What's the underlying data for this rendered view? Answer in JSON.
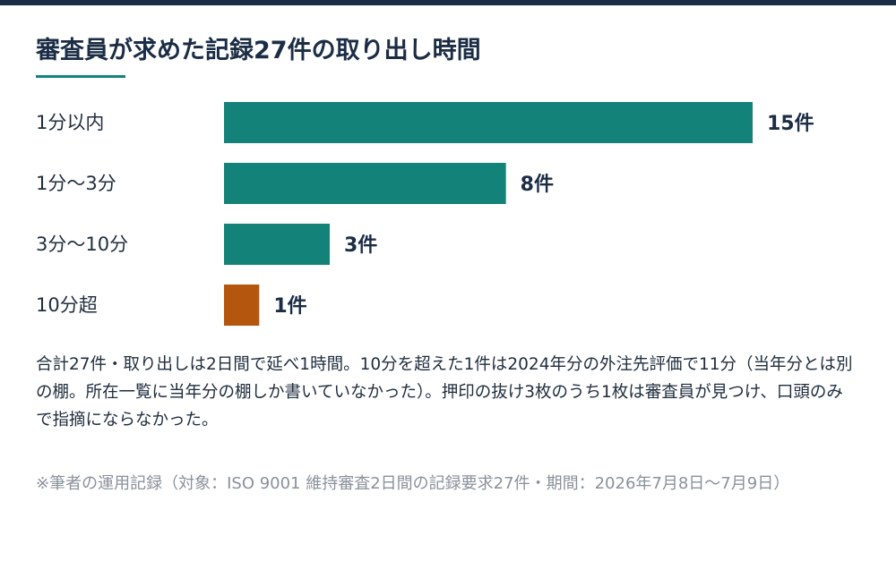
{
  "title": "審査員が求めた記録27件の取り出し時間",
  "chart_data": {
    "type": "bar",
    "orientation": "horizontal",
    "categories": [
      "1分以内",
      "1分〜3分",
      "3分〜10分",
      "10分超"
    ],
    "values": [
      15,
      8,
      3,
      1
    ],
    "value_labels": [
      "15件",
      "8件",
      "3件",
      "1件"
    ],
    "colors": [
      "#13837a",
      "#13837a",
      "#13837a",
      "#b5560f"
    ],
    "xlim": [
      0,
      15
    ],
    "grid": false,
    "title": "審査員が求めた記録27件の取り出し時間"
  },
  "note": "合計27件・取り出しは2日間で延べ1時間。10分を超えた1件は2024年分の外注先評価で11分（当年分とは別の棚。所在一覧に当年分の棚しか書いていなかった）。押印の抜け3枚のうち1枚は審査員が見つけ、口頭のみで指摘にならなかった。",
  "source": "※筆者の運用記録（対象：ISO 9001 維持審査2日間の記録要求27件・期間：2026年7月8日〜7月9日）",
  "colors": {
    "accent": "#13837a",
    "highlight": "#b5560f",
    "header_bar": "#1b2d45"
  }
}
